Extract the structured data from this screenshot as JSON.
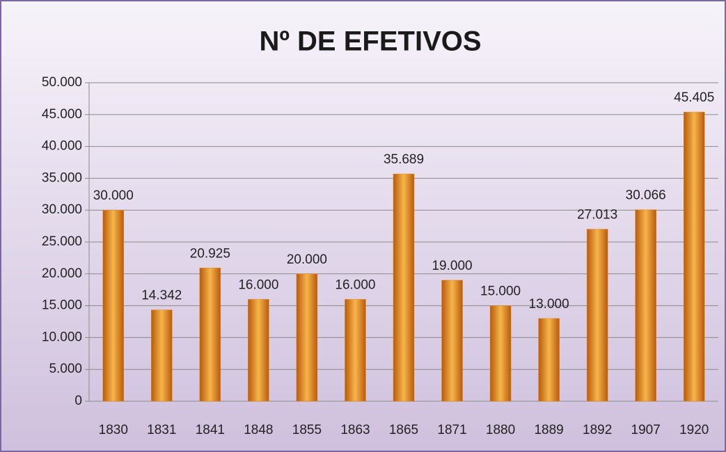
{
  "chart_data": {
    "type": "bar",
    "title": "Nº DE EFETIVOS",
    "categories": [
      "1830",
      "1831",
      "1841",
      "1848",
      "1855",
      "1863",
      "1865",
      "1871",
      "1880",
      "1889",
      "1892",
      "1907",
      "1920"
    ],
    "values": [
      30000,
      14342,
      20925,
      16000,
      20000,
      16000,
      35689,
      19000,
      15000,
      13000,
      27013,
      30066,
      45405
    ],
    "value_labels": [
      "30.000",
      "14.342",
      "20.925",
      "16.000",
      "20.000",
      "16.000",
      "35.689",
      "19.000",
      "15.000",
      "13.000",
      "27.013",
      "30.066",
      "45.405"
    ],
    "color": "#e8891e",
    "ylim": [
      0,
      50000
    ],
    "yticks": [
      0,
      {
        "value": 5000,
        "label": "5.000"
      },
      {
        "value": 10000,
        "label": "10.000"
      },
      {
        "value": 15000,
        "label": "15.000"
      },
      {
        "value": 20000,
        "label": "20.000"
      },
      {
        "value": 25000,
        "label": "25.000"
      },
      {
        "value": 30000,
        "label": "30.000"
      },
      {
        "value": 35000,
        "label": "35.000"
      },
      {
        "value": 40000,
        "label": "40.000"
      },
      {
        "value": 45000,
        "label": "45.000"
      },
      {
        "value": 50000,
        "label": "50.000"
      }
    ],
    "grid": true
  }
}
